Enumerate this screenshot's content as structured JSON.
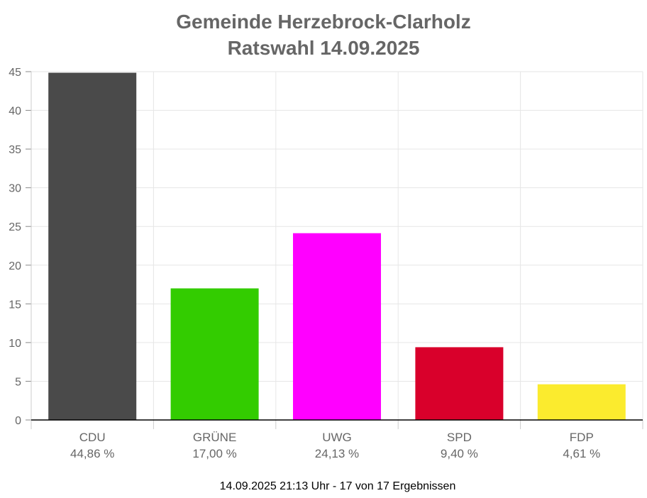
{
  "chart_data": {
    "type": "bar",
    "title": "Gemeinde Herzebrock-Clarholz",
    "subtitle": "Ratswahl 14.09.2025",
    "categories": [
      "CDU",
      "GRÜNE",
      "UWG",
      "SPD",
      "FDP"
    ],
    "values": [
      44.86,
      17.0,
      24.13,
      9.4,
      4.61
    ],
    "value_labels": [
      "44,86 %",
      "17,00 %",
      "24,13 %",
      "9,40 %",
      "4,61 %"
    ],
    "colors": [
      "#4a4a4a",
      "#33cc00",
      "#ff00ff",
      "#d9002b",
      "#fbeb2e"
    ],
    "ylim": [
      0,
      45
    ],
    "yticks": [
      0,
      5,
      10,
      15,
      20,
      25,
      30,
      35,
      40,
      45
    ],
    "grid": true,
    "xlabel": "",
    "ylabel": ""
  },
  "footer": "14.09.2025 21:13 Uhr - 17 von 17 Ergebnissen"
}
